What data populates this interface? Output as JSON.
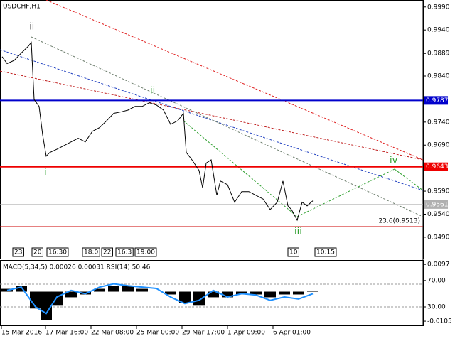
{
  "chart_data": [
    {
      "type": "line",
      "title": "USDCHF,H1",
      "x": [
        3,
        10,
        20,
        30,
        40,
        44,
        48,
        55,
        60,
        65,
        70,
        80,
        90,
        100,
        110,
        120,
        130,
        140,
        150,
        160,
        170,
        180,
        190,
        200,
        210,
        220,
        230,
        240,
        250,
        258,
        262,
        270,
        280,
        285,
        290,
        297,
        305,
        310,
        320,
        330,
        340,
        350,
        360,
        370,
        380,
        390,
        398,
        405,
        410,
        418,
        425,
        432,
        440
      ],
      "series": [
        {
          "name": "USDCHF",
          "color": "#000000",
          "values": [
            0.9882,
            0.9867,
            0.9874,
            0.989,
            0.9905,
            0.9913,
            0.9789,
            0.9774,
            0.9712,
            0.9666,
            0.9674,
            0.9681,
            0.9689,
            0.9697,
            0.9705,
            0.9697,
            0.972,
            0.9728,
            0.9743,
            0.9759,
            0.9762,
            0.9766,
            0.9774,
            0.9774,
            0.9782,
            0.9777,
            0.9766,
            0.9735,
            0.9743,
            0.9759,
            0.9674,
            0.9658,
            0.9635,
            0.9597,
            0.9651,
            0.9658,
            0.9581,
            0.9612,
            0.9604,
            0.9566,
            0.9589,
            0.9589,
            0.9581,
            0.9573,
            0.955,
            0.9566,
            0.9612,
            0.9558,
            0.955,
            0.9527,
            0.9566,
            0.9558,
            0.9569
          ]
        }
      ],
      "xlim": [
        0,
        595
      ],
      "xticks": [
        {
          "value": 2,
          "label": "15 Mar 2016"
        },
        {
          "value": 64,
          "label": "17 Mar 16:00"
        },
        {
          "value": 128,
          "label": "22 Mar 08:00"
        },
        {
          "value": 192,
          "label": "25 Mar 00:00"
        },
        {
          "value": 256,
          "label": "29 Mar 17:00"
        },
        {
          "value": 320,
          "label": "1 Apr 09:00"
        },
        {
          "value": 384,
          "label": "6 Apr 01:00"
        }
      ],
      "ylim": [
        0.9442,
        1.0002
      ],
      "yticks": [
        {
          "value": 0.999,
          "label": "0.9990"
        },
        {
          "value": 0.994,
          "label": "0.9940"
        },
        0.9889,
        {
          "value": 0.984,
          "label": "0.9840"
        },
        {
          "value": 0.974,
          "label": "0.9740"
        },
        {
          "value": 0.969,
          "label": "0.9690"
        },
        {
          "value": 0.959,
          "label": "0.9590"
        },
        {
          "value": 0.954,
          "label": "0.9540"
        },
        {
          "value": 0.949,
          "label": "0.9490"
        }
      ],
      "levels": [
        {
          "value": 0.9787,
          "color": "#0000cc"
        },
        {
          "value": 0.9643,
          "color": "#ee0000"
        },
        {
          "value": 0.9561,
          "color": "#b0b0b0"
        },
        {
          "value": 0.9513,
          "color": "#cc0000"
        }
      ],
      "annotations": [
        "ii",
        "i",
        "ii",
        "iii",
        "iv",
        "23.6(0.9513)"
      ],
      "time_markers": [
        "23",
        "20",
        "16:30",
        "18:0",
        "22",
        "16:3",
        "19:00",
        "10",
        "10:15"
      ]
    },
    {
      "type": "bar",
      "title": "MACD(5,34,5) 0.00026 0.00031 RSI(14) 50.46",
      "x": [
        10,
        30,
        50,
        65,
        80,
        100,
        120,
        140,
        160,
        180,
        200,
        220,
        240,
        260,
        280,
        300,
        320,
        340,
        360,
        380,
        400,
        420,
        440
      ],
      "series": [
        {
          "name": "MACD",
          "color": "#000000",
          "values": [
            0.001,
            0.002,
            -0.006,
            -0.01,
            -0.005,
            -0.002,
            -0.001,
            0.001,
            0.002,
            0.002,
            0.001,
            0,
            -0.001,
            -0.004,
            -0.005,
            -0.002,
            -0.002,
            -0.001,
            -0.001,
            -0.002,
            -0.001,
            -0.001,
            0.0003
          ]
        },
        {
          "name": "RSI",
          "color": "#1e90ff",
          "axis": "y2",
          "values": [
            55,
            60,
            30,
            20,
            45,
            55,
            50,
            60,
            65,
            62,
            60,
            58,
            45,
            35,
            40,
            55,
            45,
            50,
            48,
            40,
            45,
            42,
            50
          ]
        }
      ],
      "xlim": [
        0,
        595
      ],
      "ylim": [
        -0.012,
        0.011
      ],
      "yticks": [
        0.0097,
        -0.0105
      ],
      "y2lim": [
        2,
        100
      ],
      "y2ticks": [
        {
          "value": 70,
          "label": "70.00"
        },
        {
          "value": 30,
          "label": "30.00"
        }
      ]
    }
  ]
}
